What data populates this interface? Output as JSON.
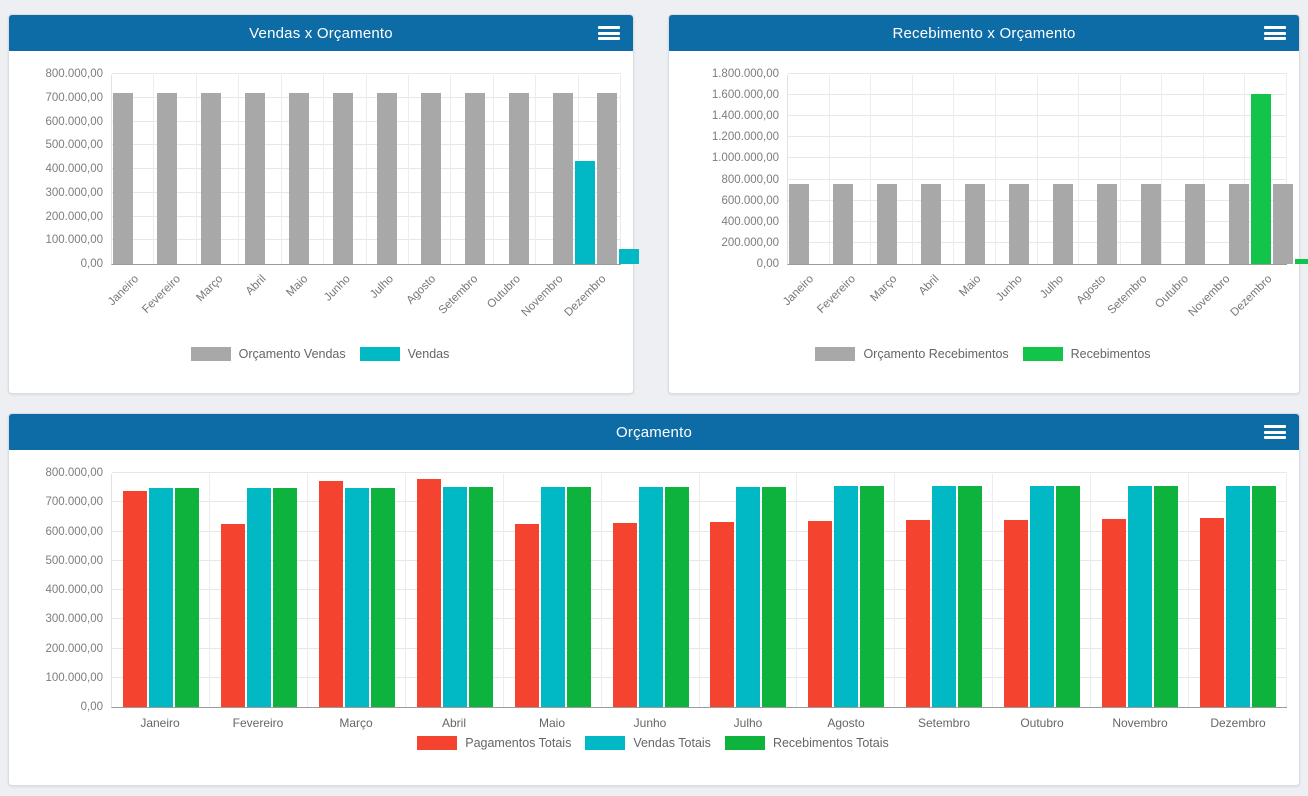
{
  "icons": {
    "panel_menu": "hamburger-menu-icon"
  },
  "colors": {
    "panel_header": "#0d6ca5",
    "panel_background": "#ffffff",
    "page_background": "#edeff2",
    "gray_series": "#a8a8a8",
    "cyan_series": "#00b9c5",
    "green_bright_series": "#12c44a",
    "green_series": "#0db33c",
    "red_series": "#f4432f"
  },
  "chart_data": [
    {
      "type": "bar",
      "title": "Vendas x Orçamento",
      "categories": [
        "Janeiro",
        "Fevereiro",
        "Março",
        "Abril",
        "Maio",
        "Junho",
        "Julho",
        "Agosto",
        "Setembro",
        "Outubro",
        "Novembro",
        "Dezembro"
      ],
      "series": [
        {
          "name": "Orçamento Vendas",
          "color": "#a8a8a8",
          "values": [
            720000,
            720000,
            720000,
            720000,
            720000,
            720000,
            720000,
            720000,
            720000,
            720000,
            720000,
            720000
          ]
        },
        {
          "name": "Vendas",
          "color": "#00b9c5",
          "values": [
            0,
            0,
            0,
            0,
            0,
            0,
            0,
            0,
            0,
            0,
            435000,
            62000
          ]
        }
      ],
      "xlabel": "",
      "ylabel": "",
      "ylim": [
        0,
        800000
      ],
      "ytick_step": 100000,
      "grid": true,
      "legend_position": "bottom",
      "x_label_rotation": -45,
      "number_format": "pt-BR"
    },
    {
      "type": "bar",
      "title": "Recebimento x Orçamento",
      "categories": [
        "Janeiro",
        "Fevereiro",
        "Março",
        "Abril",
        "Maio",
        "Junho",
        "Julho",
        "Agosto",
        "Setembro",
        "Outubro",
        "Novembro",
        "Dezembro"
      ],
      "series": [
        {
          "name": "Orçamento Recebimentos",
          "color": "#a8a8a8",
          "values": [
            755000,
            755000,
            755000,
            755000,
            755000,
            755000,
            755000,
            755000,
            755000,
            755000,
            755000,
            755000
          ]
        },
        {
          "name": "Recebimentos",
          "color": "#12c44a",
          "values": [
            0,
            0,
            0,
            0,
            0,
            0,
            0,
            0,
            0,
            0,
            1615000,
            45000
          ]
        }
      ],
      "xlabel": "",
      "ylabel": "",
      "ylim": [
        0,
        1800000
      ],
      "ytick_step": 200000,
      "grid": true,
      "legend_position": "bottom",
      "x_label_rotation": -45,
      "number_format": "pt-BR"
    },
    {
      "type": "bar",
      "title": "Orçamento",
      "categories": [
        "Janeiro",
        "Fevereiro",
        "Março",
        "Abril",
        "Maio",
        "Junho",
        "Julho",
        "Agosto",
        "Setembro",
        "Outubro",
        "Novembro",
        "Dezembro"
      ],
      "series": [
        {
          "name": "Pagamentos Totais",
          "color": "#f4432f",
          "values": [
            737000,
            625000,
            774000,
            778000,
            627000,
            630000,
            633000,
            636000,
            638000,
            640000,
            643000,
            647000
          ]
        },
        {
          "name": "Vendas Totais",
          "color": "#00b9c5",
          "values": [
            750000,
            748000,
            749000,
            751000,
            752000,
            752000,
            753000,
            754000,
            754000,
            755000,
            755000,
            756000
          ]
        },
        {
          "name": "Recebimentos Totais",
          "color": "#0db33c",
          "values": [
            750000,
            748000,
            749000,
            751000,
            752000,
            752000,
            753000,
            754000,
            754000,
            755000,
            755000,
            756000
          ]
        }
      ],
      "xlabel": "",
      "ylabel": "",
      "ylim": [
        0,
        800000
      ],
      "ytick_step": 100000,
      "grid": true,
      "legend_position": "bottom",
      "x_label_rotation": 0,
      "number_format": "pt-BR"
    }
  ]
}
